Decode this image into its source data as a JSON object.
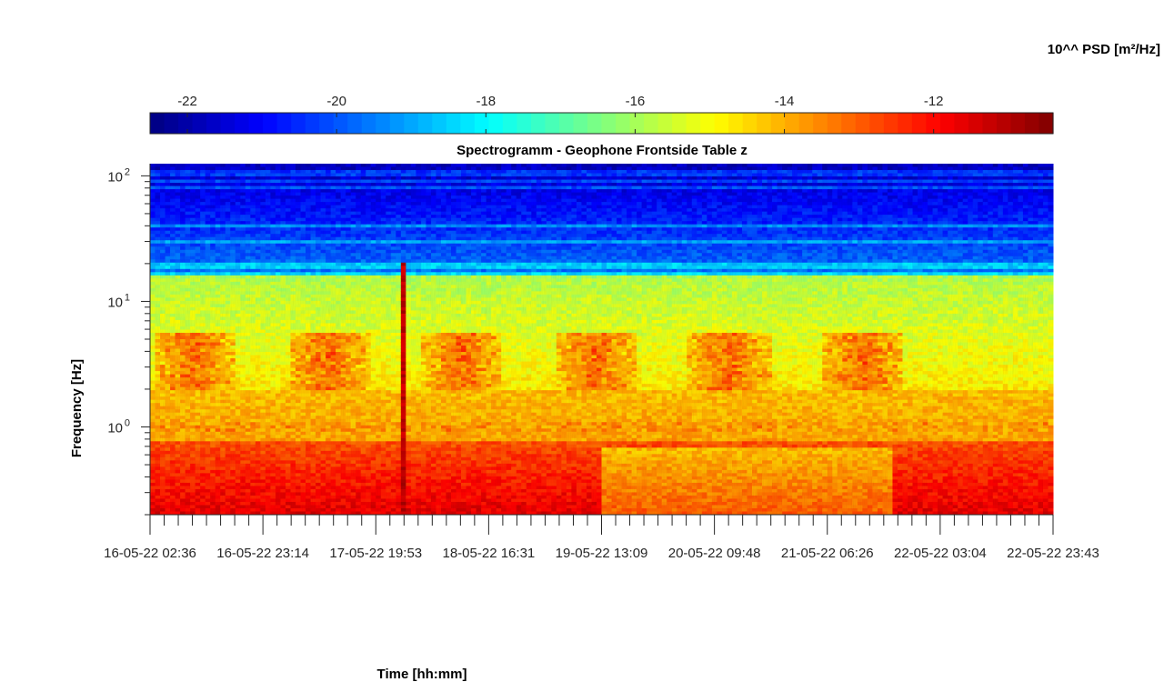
{
  "chart_data": {
    "type": "heatmap",
    "title": "Spectrogramm - Geophone Frontside Table z",
    "xlabel": "Time [hh:mm]",
    "ylabel": "Frequency [Hz]",
    "y_scale": "log",
    "ylim": [
      0.2,
      125
    ],
    "y_ticks": [
      {
        "value": 1,
        "base": "10",
        "exp": "0"
      },
      {
        "value": 10,
        "base": "10",
        "exp": "1"
      },
      {
        "value": 100,
        "base": "10",
        "exp": "2"
      }
    ],
    "x_tick_labels": [
      "16-05-22 02:36",
      "16-05-22 23:14",
      "17-05-22 19:53",
      "18-05-22 16:31",
      "19-05-22 13:09",
      "20-05-22 09:48",
      "21-05-22 06:26",
      "22-05-22 03:04",
      "22-05-22 23:43"
    ],
    "colorbar": {
      "label": "10^^ PSD [m²/Hz]",
      "colormap": "jet",
      "range": [
        -22.5,
        -10.4
      ],
      "ticks": [
        "-22",
        "-20",
        "-18",
        "-16",
        "-14",
        "-12"
      ],
      "tick_values": [
        -22,
        -20,
        -18,
        -16,
        -14,
        -12
      ]
    },
    "z_features": {
      "background_high_freq_above_16Hz": -19.5,
      "mid_band_2_to_16Hz": -15.8,
      "daytime_bursts_2_to_5Hz": -13.2,
      "line_at_1Hz": -13.5,
      "low_freq_below_0_7Hz": -12.8,
      "lowest_band_near_0_2Hz": -11.8
    },
    "day_burst_centers": [
      "16-05-22",
      "17-05-22",
      "18-05-22",
      "19-05-22",
      "20-05-22",
      "21-05-22"
    ],
    "transient_event_near": "17-05-22 19:53"
  }
}
